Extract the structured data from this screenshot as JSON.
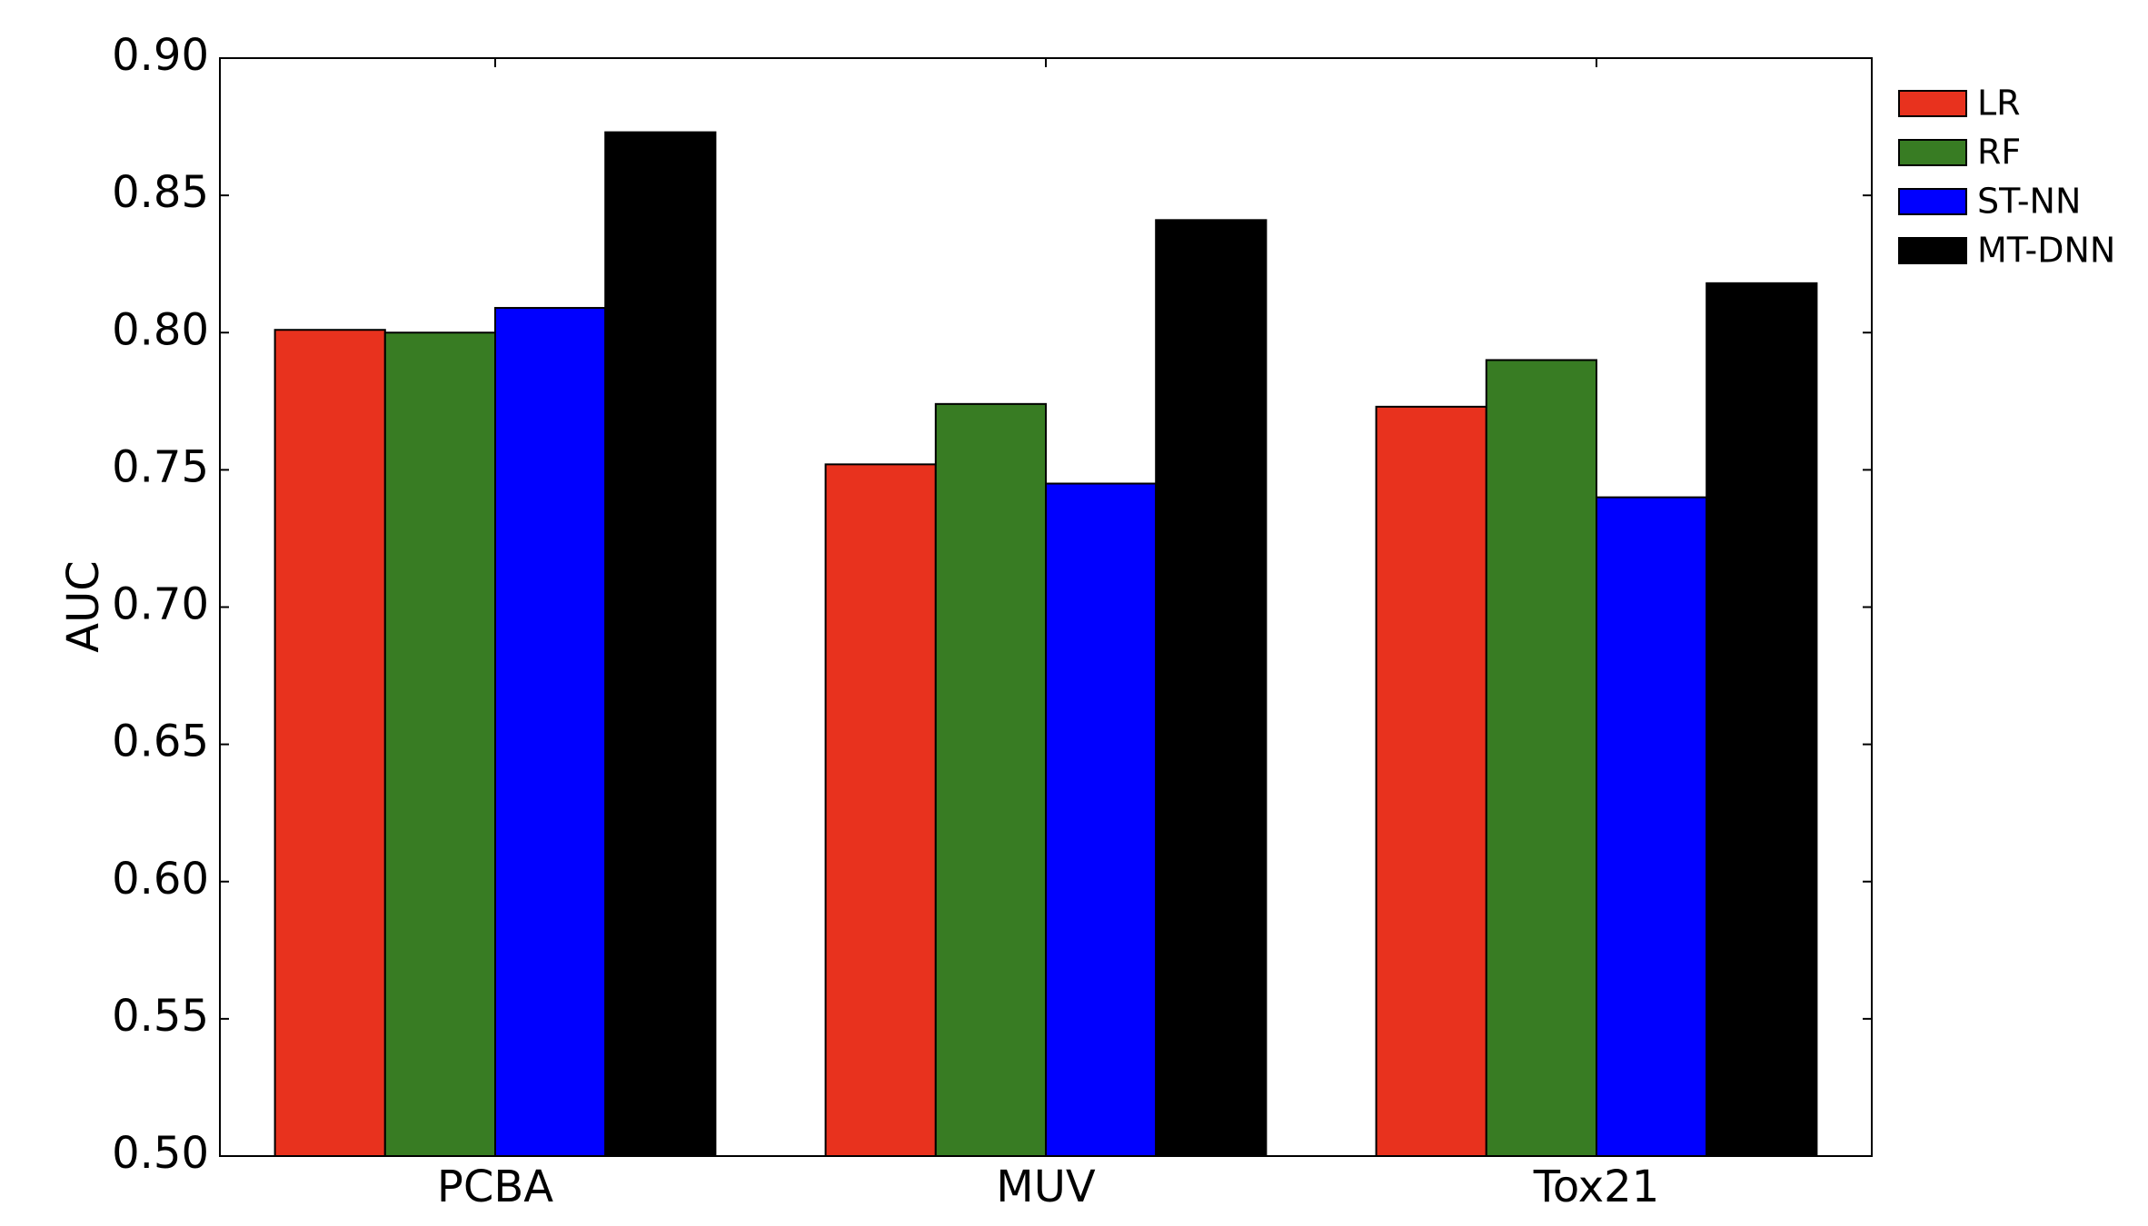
{
  "chart_data": {
    "type": "bar",
    "title": "",
    "xlabel": "",
    "ylabel": "AUC",
    "ylim": [
      0.5,
      0.9
    ],
    "yticks": [
      "0.50",
      "0.55",
      "0.60",
      "0.65",
      "0.70",
      "0.75",
      "0.80",
      "0.85",
      "0.90"
    ],
    "categories": [
      "PCBA",
      "MUV",
      "Tox21"
    ],
    "series": [
      {
        "name": "LR",
        "color": "#e8321e",
        "values": [
          0.801,
          0.752,
          0.773
        ]
      },
      {
        "name": "RF",
        "color": "#387c23",
        "values": [
          0.8,
          0.774,
          0.79
        ]
      },
      {
        "name": "ST-NN",
        "color": "#0000ff",
        "values": [
          0.809,
          0.745,
          0.74
        ]
      },
      {
        "name": "MT-DNN",
        "color": "#000000",
        "values": [
          0.873,
          0.841,
          0.818
        ]
      }
    ],
    "legend_position": "outside-top-right",
    "grid": false
  }
}
